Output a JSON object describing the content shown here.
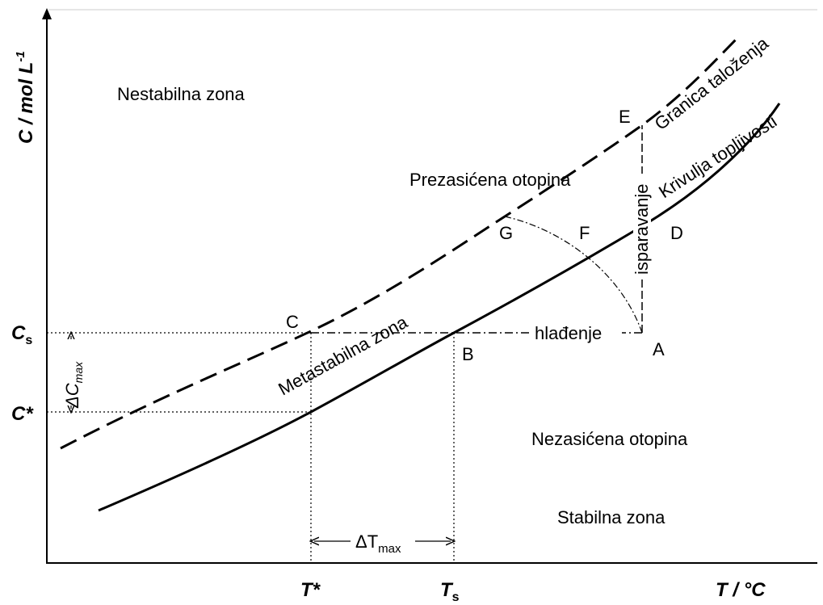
{
  "axes": {
    "y_label": {
      "main": "C / mol L",
      "sup": "-1"
    },
    "x_label": "T / °C"
  },
  "y_marks": {
    "cs": {
      "main": "C",
      "sub": "s"
    },
    "cstar": "C*",
    "delta_c": {
      "main": "ΔC",
      "sub": "max"
    }
  },
  "x_marks": {
    "tstar": "T*",
    "ts": {
      "main": "T",
      "sub": "s"
    },
    "delta_t": {
      "main": "ΔT",
      "sub": "max"
    }
  },
  "zones": {
    "unstable": "Nestabilna zona",
    "supersaturated": "Prezasićena otopina",
    "metastable": "Metastabilna zona",
    "unsaturated": "Nezasićena otopina",
    "stable": "Stabilna zona"
  },
  "curves": {
    "precipitation": "Granica taloženja",
    "solubility": "Krivulja topljivosti"
  },
  "processes": {
    "cooling": "hlađenje",
    "evaporation": "isparavanje"
  },
  "points": {
    "a": "A",
    "b": "B",
    "c": "C",
    "d": "D",
    "e": "E",
    "f": "F",
    "g": "G"
  }
}
